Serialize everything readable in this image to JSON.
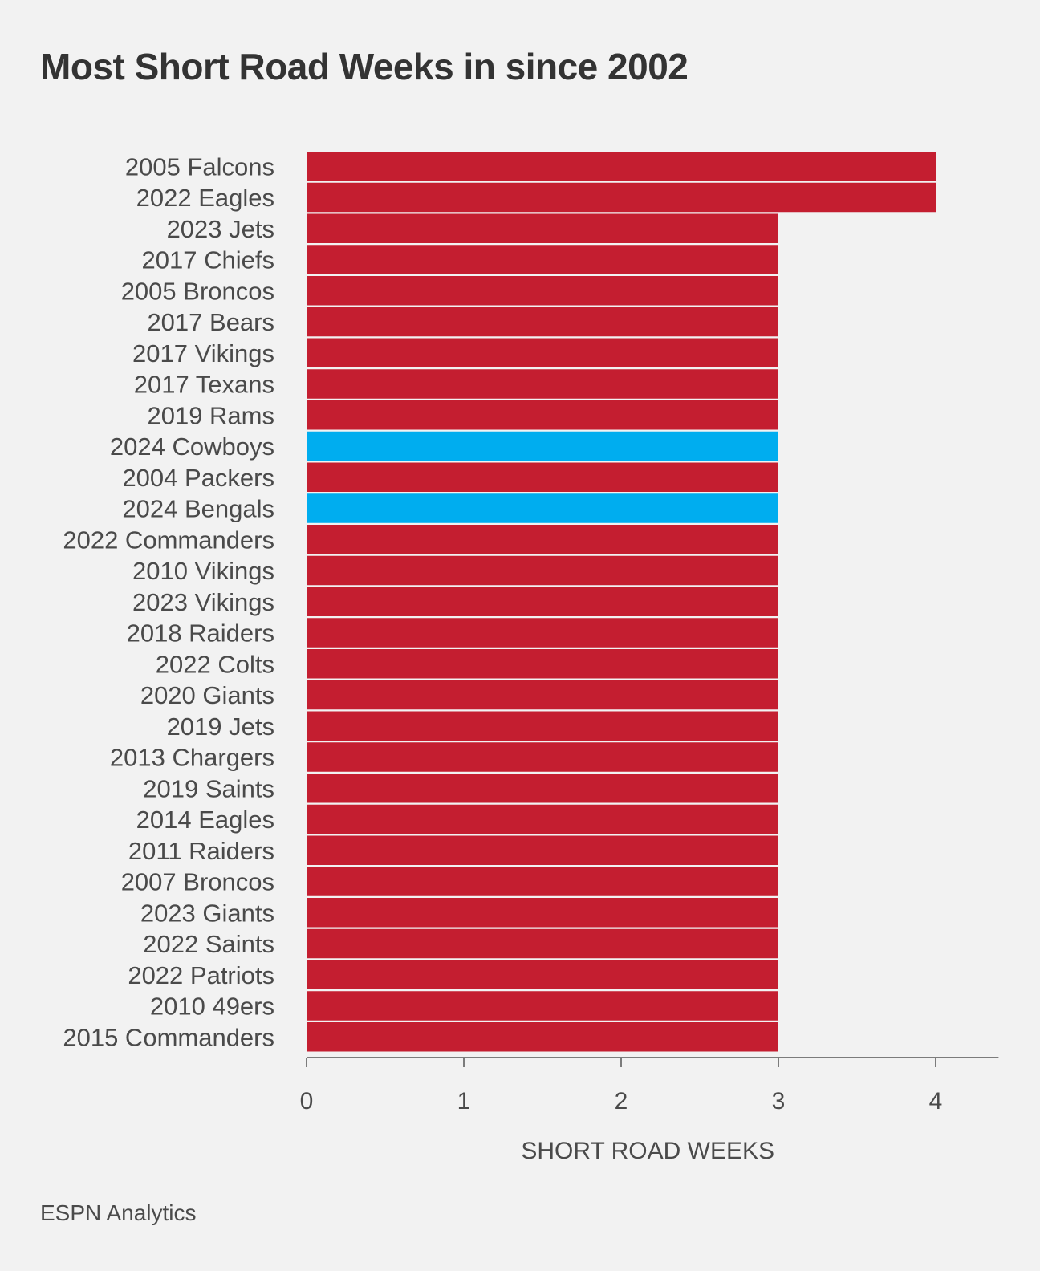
{
  "chart_data": {
    "type": "bar",
    "orientation": "horizontal",
    "title": "Most Short Road Weeks in since 2002",
    "xlabel": "SHORT ROAD WEEKS",
    "ylabel": "",
    "xlim": [
      0,
      4.4
    ],
    "xticks": [
      0,
      1,
      2,
      3,
      4
    ],
    "grid": false,
    "categories": [
      "2005 Falcons",
      "2022 Eagles",
      "2023 Jets",
      "2017 Chiefs",
      "2005 Broncos",
      "2017 Bears",
      "2017 Vikings",
      "2017 Texans",
      "2019 Rams",
      "2024 Cowboys",
      "2004 Packers",
      "2024 Bengals",
      "2022 Commanders",
      "2010 Vikings",
      "2023 Vikings",
      "2018 Raiders",
      "2022 Colts",
      "2020 Giants",
      "2019 Jets",
      "2013 Chargers",
      "2019 Saints",
      "2014 Eagles",
      "2011 Raiders",
      "2007 Broncos",
      "2023 Giants",
      "2022 Saints",
      "2022 Patriots",
      "2010 49ers",
      "2015 Commanders"
    ],
    "values": [
      4,
      4,
      3,
      3,
      3,
      3,
      3,
      3,
      3,
      3,
      3,
      3,
      3,
      3,
      3,
      3,
      3,
      3,
      3,
      3,
      3,
      3,
      3,
      3,
      3,
      3,
      3,
      3,
      3
    ],
    "highlighted": [
      "2024 Cowboys",
      "2024 Bengals"
    ],
    "colors": {
      "default": "#c41e30",
      "highlight": "#00adef",
      "text": "#4a4a4a",
      "axis": "#555555"
    }
  },
  "source": "ESPN Analytics"
}
